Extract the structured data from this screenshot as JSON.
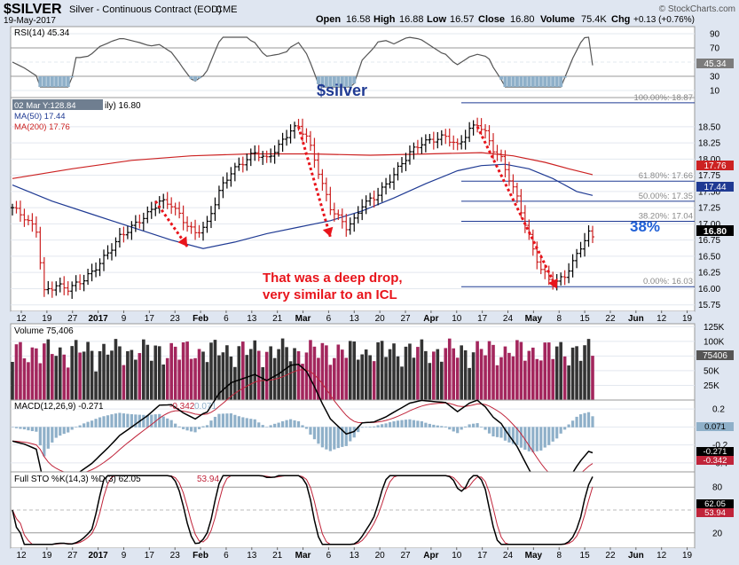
{
  "header": {
    "symbol": "$SILVER",
    "name": "Silver - Continuous Contract (EOD)",
    "exchange": "CME",
    "date": "19-May-2017",
    "open_label": "Open",
    "open": "16.58",
    "high_label": "High",
    "high": "16.88",
    "low_label": "Low",
    "low": "16.57",
    "close_label": "Close",
    "close": "16.80",
    "volume_label": "Volume",
    "volume": "75.4K",
    "chg_label": "Chg",
    "chg": "+0.13 (+0.76%)",
    "credit": "© StockCharts.com"
  },
  "colors": {
    "background": "#dfe6f1",
    "panel": "#ffffff",
    "up_volume": "#333333",
    "down_volume": "#a3265d",
    "ma50": "#1f3a93",
    "ma200": "#cc2222",
    "annotation_red": "#e8141b",
    "annotation_blue": "#1f5fd6",
    "fib_line": "#1f3a93"
  },
  "chart_data": {
    "type": "line",
    "x_axis_labels": [
      "12",
      "19",
      "27",
      "2017",
      "9",
      "17",
      "23",
      "Feb",
      "6",
      "13",
      "21",
      "Mar",
      "6",
      "13",
      "20",
      "27",
      "Apr",
      "10",
      "17",
      "24",
      "May",
      "8",
      "15",
      "22",
      "Jun",
      "12",
      "19"
    ],
    "price_panel": {
      "title": "$silver",
      "legend_label": "02 Mar Y:128.84",
      "legend_suffix": "ily) 16.80",
      "ma50_label": "MA(50) 17.44",
      "ma200_label": "MA(200) 17.76",
      "y_ticks": [
        "18.50",
        "18.25",
        "18.00",
        "17.75",
        "17.50",
        "17.25",
        "17.00",
        "16.75",
        "16.50",
        "16.25",
        "16.00",
        "15.75"
      ],
      "ylim": [
        15.65,
        18.95
      ],
      "close_tag": "16.80",
      "ma200_tag": "17.76",
      "ma50_tag": "17.44",
      "fibonacci": [
        {
          "label": "100.00%: 18.87",
          "value": 18.87
        },
        {
          "label": "61.80%: 17.66",
          "value": 17.66
        },
        {
          "label": "50.00%: 17.35",
          "value": 17.35
        },
        {
          "label": "38.20%: 17.04",
          "value": 17.04
        },
        {
          "label": "0.00%: 16.03",
          "value": 16.03
        }
      ],
      "annotation_pct": "38%",
      "annotation_text": [
        "That was a deep drop,",
        "very similar to an ICL"
      ],
      "price_approx": [
        [
          0,
          17.25
        ],
        [
          3,
          17.1
        ],
        [
          6,
          16.9
        ],
        [
          8,
          15.95
        ],
        [
          11,
          16.05
        ],
        [
          14,
          16.0
        ],
        [
          17,
          16.1
        ],
        [
          20,
          16.25
        ],
        [
          24,
          16.55
        ],
        [
          27,
          16.8
        ],
        [
          30,
          16.95
        ],
        [
          34,
          17.15
        ],
        [
          37,
          17.35
        ],
        [
          40,
          17.3
        ],
        [
          43,
          17.05
        ],
        [
          46,
          16.85
        ],
        [
          49,
          17.0
        ],
        [
          52,
          17.5
        ],
        [
          55,
          17.8
        ],
        [
          58,
          17.95
        ],
        [
          61,
          18.1
        ],
        [
          64,
          18.0
        ],
        [
          67,
          18.2
        ],
        [
          70,
          18.45
        ],
        [
          72,
          18.5
        ],
        [
          74,
          18.35
        ],
        [
          76,
          18.0
        ],
        [
          78,
          17.6
        ],
        [
          80,
          17.25
        ],
        [
          82,
          17.1
        ],
        [
          84,
          16.95
        ],
        [
          86,
          17.05
        ],
        [
          88,
          17.3
        ],
        [
          91,
          17.4
        ],
        [
          94,
          17.6
        ],
        [
          97,
          17.85
        ],
        [
          100,
          18.1
        ],
        [
          103,
          18.25
        ],
        [
          106,
          18.3
        ],
        [
          109,
          18.35
        ],
        [
          112,
          18.2
        ],
        [
          115,
          18.45
        ],
        [
          117,
          18.55
        ],
        [
          119,
          18.4
        ],
        [
          121,
          18.15
        ],
        [
          123,
          18.0
        ],
        [
          125,
          17.7
        ],
        [
          127,
          17.4
        ],
        [
          129,
          17.0
        ],
        [
          131,
          16.6
        ],
        [
          133,
          16.3
        ],
        [
          135,
          16.15
        ],
        [
          137,
          16.1
        ],
        [
          139,
          16.2
        ],
        [
          141,
          16.4
        ],
        [
          143,
          16.65
        ],
        [
          145,
          16.85
        ],
        [
          146,
          16.8
        ]
      ],
      "ma50_approx": [
        [
          0,
          17.6
        ],
        [
          10,
          17.35
        ],
        [
          20,
          17.15
        ],
        [
          30,
          16.95
        ],
        [
          40,
          16.75
        ],
        [
          48,
          16.62
        ],
        [
          56,
          16.72
        ],
        [
          64,
          16.85
        ],
        [
          72,
          16.95
        ],
        [
          80,
          17.05
        ],
        [
          88,
          17.2
        ],
        [
          96,
          17.4
        ],
        [
          104,
          17.62
        ],
        [
          112,
          17.82
        ],
        [
          118,
          17.9
        ],
        [
          124,
          17.92
        ],
        [
          130,
          17.85
        ],
        [
          136,
          17.7
        ],
        [
          142,
          17.5
        ],
        [
          146,
          17.44
        ]
      ],
      "ma200_approx": [
        [
          0,
          17.7
        ],
        [
          15,
          17.85
        ],
        [
          30,
          17.98
        ],
        [
          45,
          18.05
        ],
        [
          60,
          18.08
        ],
        [
          75,
          18.08
        ],
        [
          90,
          18.06
        ],
        [
          105,
          18.08
        ],
        [
          118,
          18.1
        ],
        [
          126,
          18.05
        ],
        [
          134,
          17.95
        ],
        [
          140,
          17.85
        ],
        [
          146,
          17.76
        ]
      ]
    },
    "rsi_panel": {
      "label": "RSI(14) 45.34",
      "y_ticks": [
        "90",
        "70",
        "50",
        "30",
        "10"
      ],
      "value_tag": "45.34",
      "value": 45.34,
      "ylim": [
        0,
        100
      ]
    },
    "volume_panel": {
      "label": "Volume 75,406",
      "y_ticks": [
        "125K",
        "100K",
        "75K",
        "50K",
        "25K"
      ],
      "value_tag": "75406",
      "value": 75406,
      "ylim": [
        0,
        130000
      ]
    },
    "macd_panel": {
      "label": "MACD(12,26,9) -0.271, -0.342, 0.071",
      "label_macd": "MACD(12,26,9) -0.271",
      "label_signal": "-0.342",
      "label_hist": "0.071",
      "y_ticks": [
        "0.2",
        "0.0",
        "-0.2",
        "-0.4"
      ],
      "tags": [
        "0.071",
        "-0.271",
        "-0.342"
      ],
      "ylim": [
        -0.5,
        0.3
      ]
    },
    "sto_panel": {
      "label": "Full STO %K(14,3) %D(3) 62.05, 53.94",
      "label_k": "Full STO %K(14,3) %D(3) 62.05",
      "label_d": "53.94",
      "y_ticks": [
        "80",
        "50",
        "20"
      ],
      "tags": [
        "62.05",
        "53.94"
      ],
      "ylim": [
        0,
        100
      ]
    }
  }
}
